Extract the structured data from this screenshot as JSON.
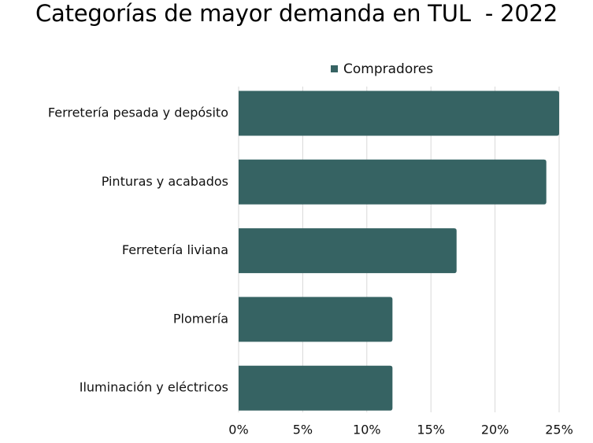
{
  "chart_data": {
    "type": "bar",
    "orientation": "horizontal",
    "title": "Categorías de mayor demanda en TUL  - 2022",
    "categories": [
      "Ferretería pesada y depósito",
      "Pinturas y acabados",
      "Ferretería liviana",
      "Plomería",
      "Iluminación y eléctricos"
    ],
    "series": [
      {
        "name": "Compradores",
        "values": [
          25,
          24,
          17,
          12,
          12
        ],
        "color": "#366363"
      }
    ],
    "xlim": [
      0,
      25
    ],
    "xticks": [
      0,
      5,
      10,
      15,
      20,
      25
    ],
    "xtick_labels": [
      "0%",
      "5%",
      "10%",
      "15%",
      "20%",
      "25%"
    ],
    "grid": true,
    "legend_position": "top-center"
  }
}
